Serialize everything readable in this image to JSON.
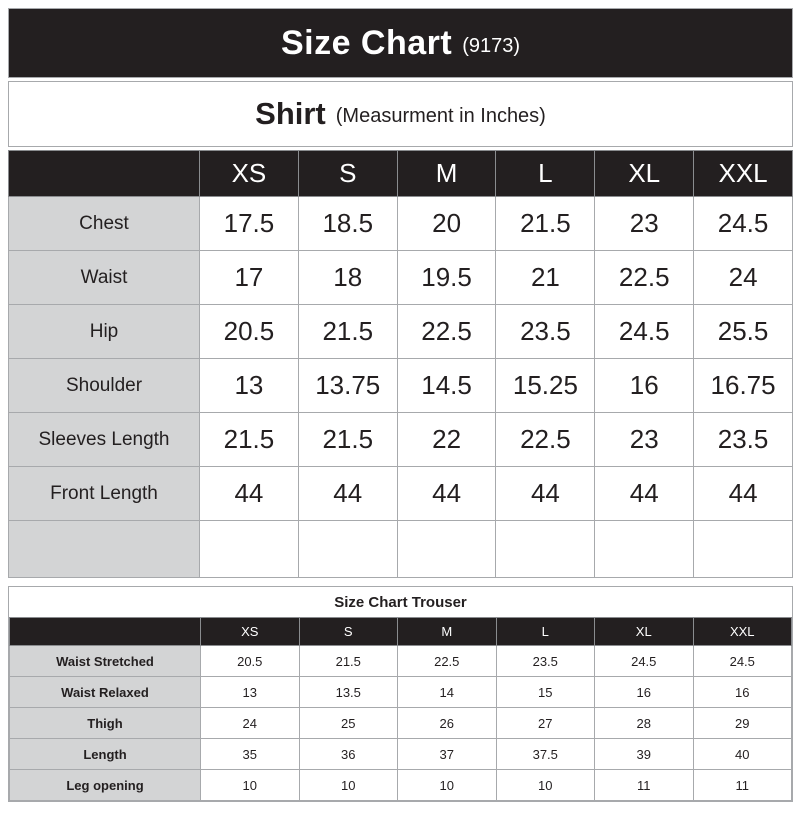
{
  "page": {
    "title": "Size Chart",
    "title_code": "(9173)"
  },
  "shirt_section": {
    "title": "Shirt",
    "subtitle": "(Measurment in Inches)"
  },
  "sizes": [
    "XS",
    "S",
    "M",
    "L",
    "XL",
    "XXL"
  ],
  "shirt_table": {
    "rows": [
      {
        "label": "Chest",
        "values": [
          "17.5",
          "18.5",
          "20",
          "21.5",
          "23",
          "24.5"
        ]
      },
      {
        "label": "Waist",
        "values": [
          "17",
          "18",
          "19.5",
          "21",
          "22.5",
          "24"
        ]
      },
      {
        "label": "Hip",
        "values": [
          "20.5",
          "21.5",
          "22.5",
          "23.5",
          "24.5",
          "25.5"
        ]
      },
      {
        "label": "Shoulder",
        "values": [
          "13",
          "13.75",
          "14.5",
          "15.25",
          "16",
          "16.75"
        ]
      },
      {
        "label": "Sleeves Length",
        "values": [
          "21.5",
          "21.5",
          "22",
          "22.5",
          "23",
          "23.5"
        ]
      },
      {
        "label": "Front Length",
        "values": [
          "44",
          "44",
          "44",
          "44",
          "44",
          "44"
        ]
      },
      {
        "label": "",
        "values": [
          "",
          "",
          "",
          "",
          "",
          ""
        ]
      }
    ]
  },
  "trouser_table": {
    "title": "Size Chart Trouser",
    "rows": [
      {
        "label": "Waist Stretched",
        "values": [
          "20.5",
          "21.5",
          "22.5",
          "23.5",
          "24.5",
          "24.5"
        ]
      },
      {
        "label": "Waist Relaxed",
        "values": [
          "13",
          "13.5",
          "14",
          "15",
          "16",
          "16"
        ]
      },
      {
        "label": "Thigh",
        "values": [
          "24",
          "25",
          "26",
          "27",
          "28",
          "29"
        ]
      },
      {
        "label": "Length",
        "values": [
          "35",
          "36",
          "37",
          "37.5",
          "39",
          "40"
        ]
      },
      {
        "label": "Leg opening",
        "values": [
          "10",
          "10",
          "10",
          "10",
          "11",
          "11"
        ]
      }
    ]
  },
  "colors": {
    "header_black": "#231f20",
    "label_gray": "#d3d4d5",
    "border_gray": "#a7a9ac"
  }
}
